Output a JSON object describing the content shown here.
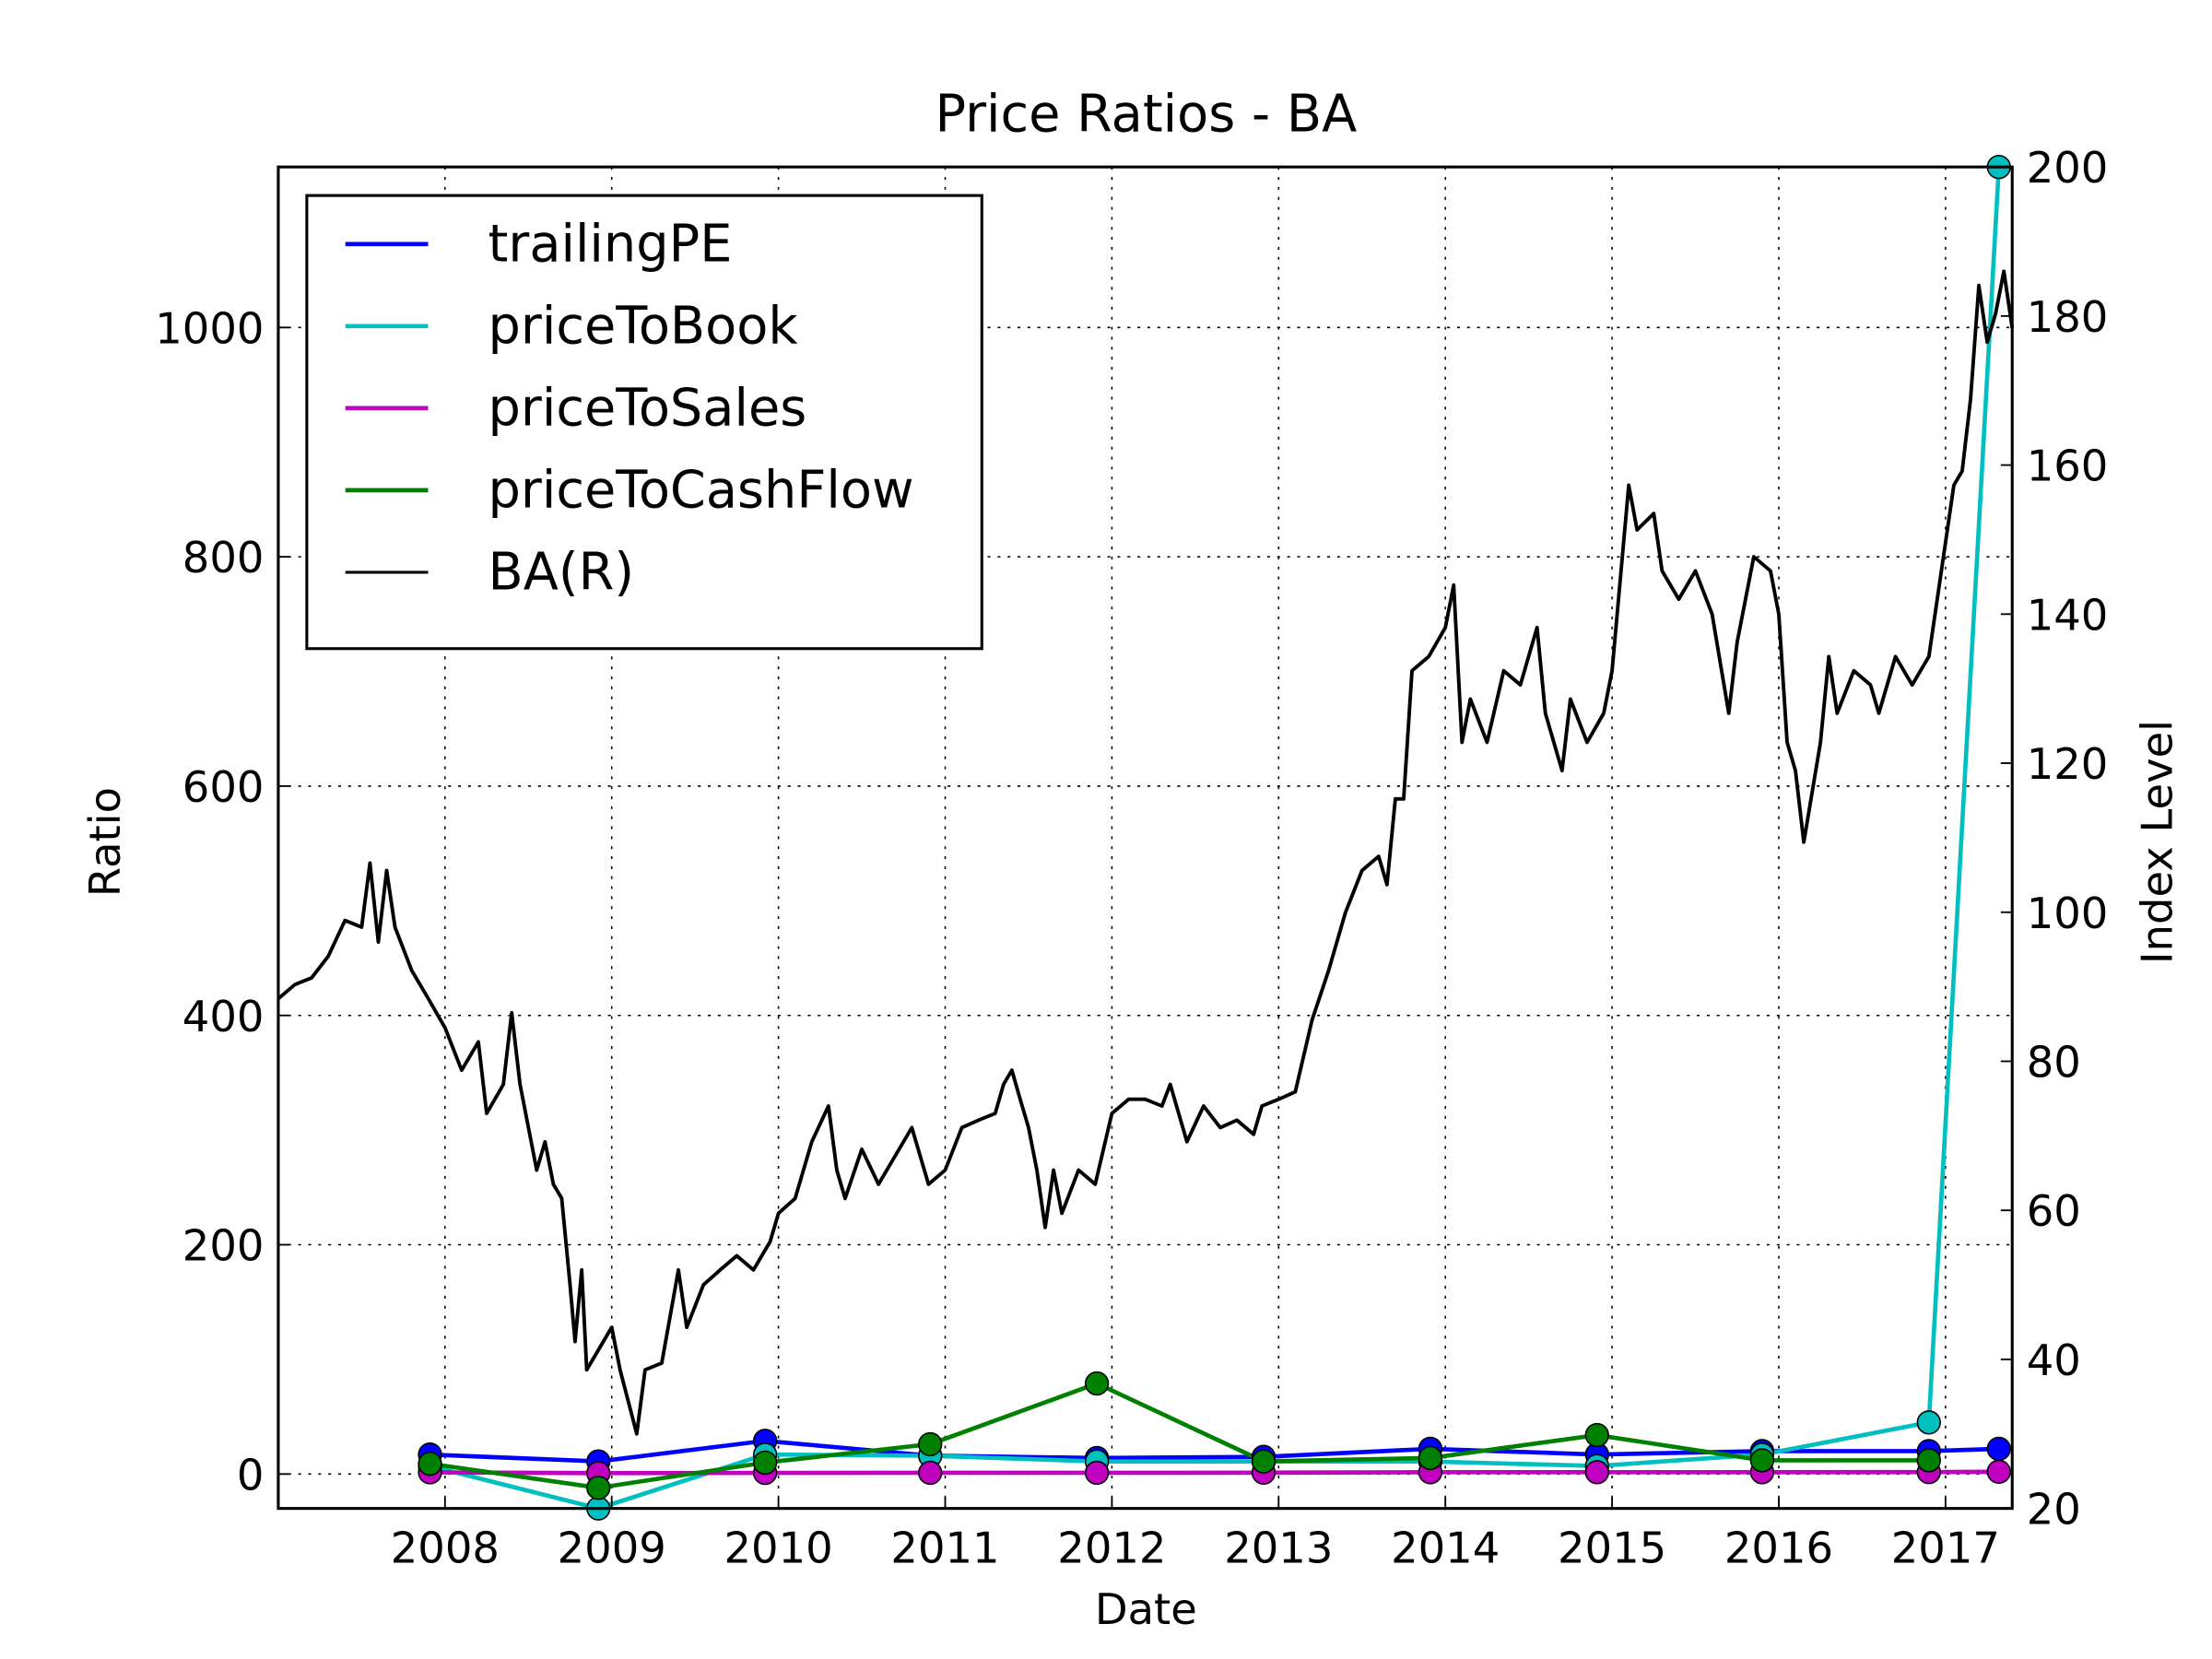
{
  "chart_data": {
    "type": "line",
    "title": "Price Ratios - BA",
    "xlabel": "Date",
    "ylabel": "Ratio",
    "y2label": "Index Level",
    "xlim": [
      2007.0,
      2017.4
    ],
    "xticks": [
      2008,
      2009,
      2010,
      2011,
      2012,
      2013,
      2014,
      2015,
      2016,
      2017
    ],
    "ylim": [
      -30,
      1140
    ],
    "yticks": [
      0,
      200,
      400,
      600,
      800,
      1000
    ],
    "y2lim": [
      20,
      200
    ],
    "y2ticks": [
      20,
      40,
      60,
      80,
      100,
      120,
      140,
      160,
      180,
      200
    ],
    "grid": true,
    "legend": "upper left",
    "x": [
      2007.91,
      2008.92,
      2009.92,
      2010.91,
      2011.91,
      2012.91,
      2013.91,
      2014.91,
      2015.9,
      2016.9,
      2017.32
    ],
    "series": [
      {
        "name": "trailingPE",
        "color": "#0000ff",
        "markers": true,
        "values": [
          17,
          11,
          29,
          16,
          14,
          15,
          22,
          17,
          20,
          20,
          22
        ]
      },
      {
        "name": "priceToBook",
        "color": "#00bfbf",
        "markers": true,
        "values": [
          7,
          -30,
          17,
          16,
          11,
          11,
          11,
          7,
          17,
          45,
          1140
        ]
      },
      {
        "name": "priceToSales",
        "color": "#bf00bf",
        "markers": true,
        "values": [
          1.5,
          0.8,
          1,
          1.1,
          1.1,
          1.2,
          1.6,
          1.6,
          1.6,
          1.7,
          2
        ]
      },
      {
        "name": "priceToCashFlow",
        "color": "#008000",
        "markers": true,
        "values": [
          9,
          -12,
          10,
          26,
          79,
          11,
          14,
          34,
          12,
          12,
          null
        ]
      },
      {
        "name": "BA(R)",
        "color": "#000000",
        "markers": false,
        "axis": "y2",
        "x": [
          2007.0,
          2007.1,
          2007.2,
          2007.3,
          2007.4,
          2007.5,
          2007.55,
          2007.6,
          2007.65,
          2007.7,
          2007.8,
          2007.9,
          2008.0,
          2008.1,
          2008.2,
          2008.25,
          2008.35,
          2008.4,
          2008.45,
          2008.55,
          2008.6,
          2008.65,
          2008.7,
          2008.75,
          2008.78,
          2008.82,
          2008.85,
          2008.9,
          2009.0,
          2009.05,
          2009.15,
          2009.2,
          2009.3,
          2009.4,
          2009.45,
          2009.55,
          2009.65,
          2009.75,
          2009.85,
          2009.95,
          2010.0,
          2010.1,
          2010.2,
          2010.3,
          2010.35,
          2010.4,
          2010.5,
          2010.6,
          2010.7,
          2010.8,
          2010.9,
          2011.0,
          2011.1,
          2011.2,
          2011.3,
          2011.35,
          2011.4,
          2011.45,
          2011.5,
          2011.55,
          2011.6,
          2011.65,
          2011.7,
          2011.8,
          2011.9,
          2012.0,
          2012.1,
          2012.2,
          2012.3,
          2012.35,
          2012.45,
          2012.55,
          2012.65,
          2012.75,
          2012.85,
          2012.9,
          2013.0,
          2013.1,
          2013.2,
          2013.3,
          2013.4,
          2013.5,
          2013.6,
          2013.65,
          2013.7,
          2013.75,
          2013.8,
          2013.9,
          2014.0,
          2014.05,
          2014.1,
          2014.15,
          2014.25,
          2014.35,
          2014.45,
          2014.55,
          2014.6,
          2014.7,
          2014.75,
          2014.85,
          2014.95,
          2015.0,
          2015.1,
          2015.15,
          2015.25,
          2015.3,
          2015.4,
          2015.5,
          2015.6,
          2015.7,
          2015.75,
          2015.85,
          2015.95,
          2016.0,
          2016.05,
          2016.1,
          2016.15,
          2016.25,
          2016.3,
          2016.35,
          2016.45,
          2016.55,
          2016.6,
          2016.7,
          2016.8,
          2016.9,
          2017.0,
          2017.05,
          2017.1,
          2017.15,
          2017.2,
          2017.25,
          2017.3,
          2017.35,
          2017.4
        ],
        "values": [
          88.4,
          90.3,
          91.2,
          94.1,
          98.9,
          98,
          106.6,
          96,
          105.6,
          98,
          92.2,
          88.4,
          84.5,
          78.8,
          82.6,
          73,
          76.9,
          86.5,
          76.9,
          65.4,
          69.2,
          63.5,
          61.6,
          50,
          42.4,
          52,
          38.6,
          40.5,
          44.3,
          38.6,
          30,
          38.6,
          39.5,
          52,
          44.3,
          50,
          52,
          53.9,
          52,
          55.8,
          59.6,
          61.6,
          69.2,
          74,
          65.4,
          61.6,
          68.2,
          63.5,
          67.3,
          71.1,
          63.5,
          65.4,
          71.1,
          72.1,
          73,
          76.9,
          78.8,
          74.9,
          71.1,
          65.4,
          57.7,
          65.4,
          59.6,
          65.4,
          63.5,
          73,
          74.9,
          74.9,
          74,
          76.9,
          69.2,
          74,
          71.1,
          72.1,
          70.2,
          74,
          74.9,
          75.9,
          85.5,
          92.2,
          99.9,
          105.6,
          107.5,
          103.7,
          115.2,
          115.2,
          132.4,
          134.3,
          138.2,
          143.9,
          122.8,
          128.6,
          122.8,
          132.4,
          130.5,
          138.2,
          126.7,
          119,
          128.6,
          122.8,
          126.7,
          132.4,
          157.3,
          151.3,
          153.5,
          145.8,
          142,
          145.8,
          140,
          126.7,
          136.2,
          147.7,
          145.8,
          140,
          122.8,
          119,
          109.4,
          122.8,
          134.3,
          126.7,
          132.4,
          130.5,
          126.7,
          134.3,
          130.5,
          134.3,
          149.6,
          157.3,
          159.2,
          168.8,
          184.1,
          176.5,
          180.3,
          186,
          178.4
        ]
      }
    ]
  }
}
